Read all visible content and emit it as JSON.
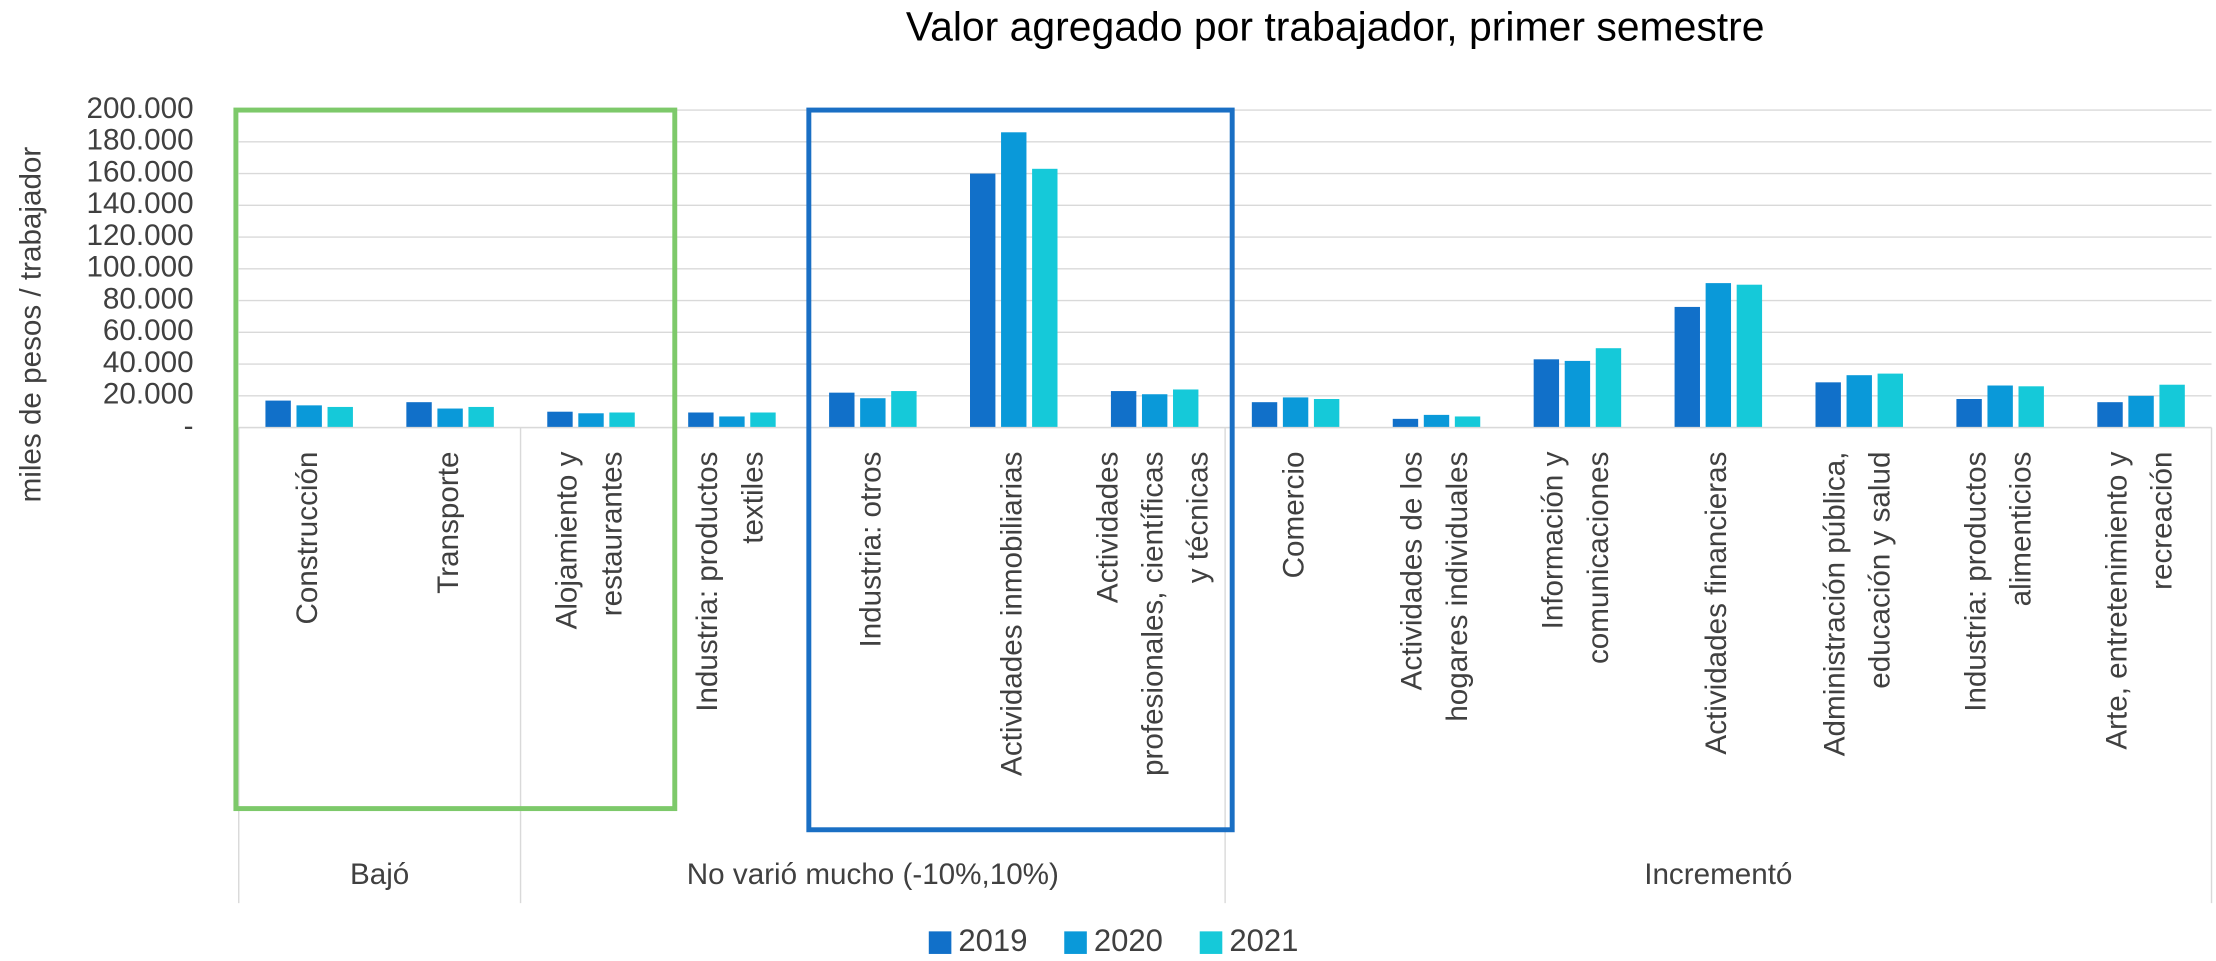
{
  "chart_data": {
    "type": "bar",
    "title": "Valor agregado por trabajador, primer semestre",
    "y_label": "miles de pesos / trabajador",
    "groups": [
      {
        "name": "Bajó",
        "categories": [
          [
            "Construcción"
          ],
          [
            "Transporte"
          ]
        ]
      },
      {
        "name": "No varió mucho (-10%,10%)",
        "categories": [
          [
            "Alojamiento y",
            "restaurantes"
          ],
          [
            "Industria: productos",
            "textiles"
          ],
          [
            "Industria: otros"
          ],
          [
            "Actividades inmobiliarias"
          ],
          [
            "Actividades",
            "profesionales, científicas",
            "y técnicas"
          ]
        ]
      },
      {
        "name": "Incrementó",
        "categories": [
          [
            "Comercio"
          ],
          [
            "Actividades de los",
            "hogares individuales"
          ],
          [
            "Información y",
            "comunicaciones"
          ],
          [
            "Actividades financieras"
          ],
          [
            "Administración pública,",
            "educación y salud"
          ],
          [
            "Industria: productos",
            "alimenticios"
          ],
          [
            "Arte, entretenimiento y",
            "recreación"
          ]
        ]
      }
    ],
    "series": [
      {
        "name": "2019",
        "color": "#1170c9",
        "values": [
          17000,
          16000,
          10000,
          9500,
          22000,
          160000,
          23000,
          16000,
          5500,
          43000,
          76000,
          28500,
          18000,
          16000
        ]
      },
      {
        "name": "2020",
        "color": "#0a99d9",
        "values": [
          14000,
          12000,
          9000,
          7000,
          18500,
          186000,
          21000,
          19000,
          8000,
          42000,
          91000,
          33000,
          26500,
          20000
        ]
      },
      {
        "name": "2021",
        "color": "#15c9d9",
        "values": [
          13000,
          13000,
          9500,
          9500,
          23000,
          163000,
          24000,
          18000,
          7000,
          50000,
          90000,
          34000,
          26000,
          27000
        ]
      }
    ],
    "ylim": [
      0,
      200000
    ],
    "yticks": [
      {
        "value": 0,
        "label": "-"
      },
      {
        "value": 20000,
        "label": "20.000"
      },
      {
        "value": 40000,
        "label": "40.000"
      },
      {
        "value": 60000,
        "label": "60.000"
      },
      {
        "value": 80000,
        "label": "80.000"
      },
      {
        "value": 100000,
        "label": "100.000"
      },
      {
        "value": 120000,
        "label": "120.000"
      },
      {
        "value": 140000,
        "label": "140.000"
      },
      {
        "value": 160000,
        "label": "160.000"
      },
      {
        "value": 180000,
        "label": "180.000"
      },
      {
        "value": 200000,
        "label": "200.000"
      }
    ],
    "grid": true,
    "legend": "bottom"
  }
}
